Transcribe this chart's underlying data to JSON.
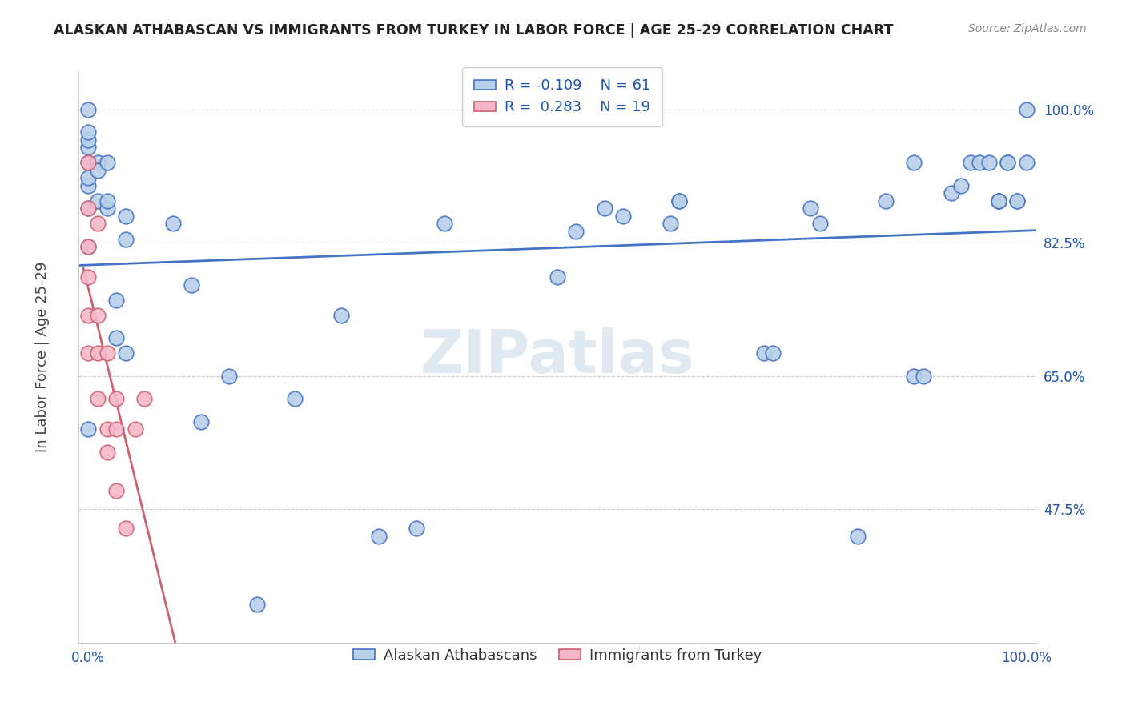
{
  "title": "ALASKAN ATHABASCAN VS IMMIGRANTS FROM TURKEY IN LABOR FORCE | AGE 25-29 CORRELATION CHART",
  "source": "Source: ZipAtlas.com",
  "ylabel": "In Labor Force | Age 25-29",
  "ytick_labels": [
    "47.5%",
    "65.0%",
    "82.5%",
    "100.0%"
  ],
  "ytick_values": [
    47.5,
    65.0,
    82.5,
    100.0
  ],
  "xlim": [
    0.0,
    100.0
  ],
  "ylim": [
    30.0,
    105.0
  ],
  "blue_R": -0.109,
  "blue_N": 61,
  "pink_R": 0.283,
  "pink_N": 19,
  "blue_face": "#b8d0e8",
  "blue_edge": "#4472c4",
  "blue_line": "#4472c4",
  "pink_face": "#f4b8c8",
  "pink_edge": "#d06070",
  "pink_line": "#d06070",
  "watermark": "ZIPatlas",
  "blue_x": [
    0,
    0,
    0,
    0,
    0,
    0,
    0,
    0,
    0,
    0,
    1,
    1,
    1,
    2,
    2,
    2,
    3,
    3,
    4,
    4,
    4,
    9,
    11,
    12,
    15,
    18,
    22,
    27,
    31,
    35,
    38,
    50,
    52,
    55,
    57,
    62,
    63,
    63,
    72,
    73,
    77,
    78,
    82,
    85,
    88,
    88,
    89,
    92,
    93,
    94,
    95,
    96,
    97,
    97,
    97,
    98,
    98,
    99,
    99,
    100,
    100
  ],
  "blue_y": [
    58,
    82,
    87,
    90,
    91,
    93,
    95,
    96,
    97,
    100,
    88,
    93,
    92,
    87,
    93,
    88,
    70,
    75,
    83,
    68,
    86,
    85,
    77,
    59,
    65,
    35,
    62,
    73,
    44,
    45,
    85,
    78,
    84,
    87,
    86,
    85,
    88,
    88,
    68,
    68,
    87,
    85,
    44,
    88,
    93,
    65,
    65,
    89,
    90,
    93,
    93,
    93,
    88,
    88,
    88,
    93,
    93,
    88,
    88,
    93,
    100
  ],
  "pink_x": [
    0,
    0,
    0,
    0,
    0,
    0,
    1,
    1,
    1,
    1,
    2,
    2,
    2,
    3,
    3,
    3,
    4,
    5,
    6
  ],
  "pink_y": [
    93,
    87,
    82,
    78,
    73,
    68,
    85,
    73,
    68,
    62,
    55,
    58,
    68,
    58,
    62,
    50,
    45,
    58,
    62
  ],
  "pink_line_xmax": 15
}
